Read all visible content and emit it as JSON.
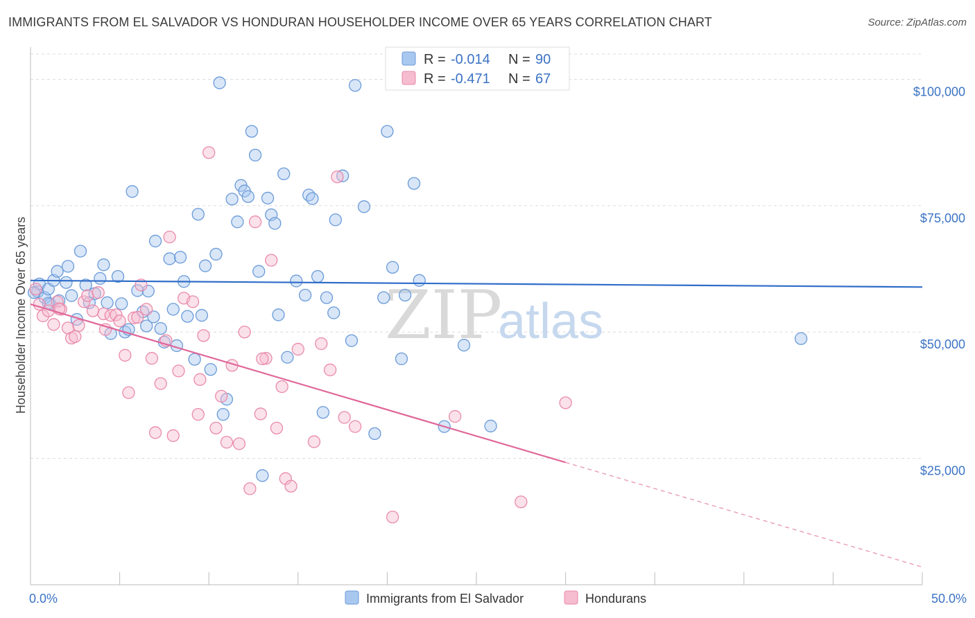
{
  "header": {
    "title": "IMMIGRANTS FROM EL SALVADOR VS HONDURAN HOUSEHOLDER INCOME OVER 65 YEARS CORRELATION CHART",
    "source": "Source: ZipAtlas.com"
  },
  "watermark": {
    "zip": "ZIP",
    "atlas": "atlas"
  },
  "legend_top": [
    {
      "r_label": "R =",
      "r_value": "-0.014",
      "n_label": "N =",
      "n_value": "90",
      "color": "#a9c8f0"
    },
    {
      "r_label": "R =",
      "r_value": "-0.471",
      "n_label": "N =",
      "n_value": "67",
      "color": "#f6bcd0"
    }
  ],
  "chart_data": {
    "type": "scatter",
    "title": "IMMIGRANTS FROM EL SALVADOR VS HONDURAN HOUSEHOLDER INCOME OVER 65 YEARS CORRELATION CHART",
    "xlabel": "",
    "ylabel": "Householder Income Over 65 years",
    "xlim": [
      0,
      50
    ],
    "ylim": [
      0,
      105000
    ],
    "x_tick_labels": [
      "0.0%",
      "50.0%"
    ],
    "y_ticks": [
      25000,
      50000,
      75000,
      100000
    ],
    "y_tick_labels": [
      "$25,000",
      "$50,000",
      "$75,000",
      "$100,000"
    ],
    "grid": true,
    "legend_position": "bottom",
    "series": [
      {
        "name": "Immigrants from El Salvador",
        "color": "#6a9ad8",
        "fill": "#a9c8f0",
        "trend": {
          "x": [
            0,
            50
          ],
          "y": [
            60200,
            58900
          ],
          "style": "solid"
        },
        "points": [
          [
            0.4,
            58000
          ],
          [
            0.5,
            59500
          ],
          [
            0.8,
            56800
          ],
          [
            1.0,
            58500
          ],
          [
            1.1,
            55500
          ],
          [
            1.3,
            60200
          ],
          [
            1.5,
            62000
          ],
          [
            1.6,
            56200
          ],
          [
            2.0,
            59800
          ],
          [
            2.1,
            63000
          ],
          [
            2.3,
            57200
          ],
          [
            2.8,
            66000
          ],
          [
            3.1,
            59300
          ],
          [
            3.3,
            55800
          ],
          [
            3.6,
            57600
          ],
          [
            3.9,
            60600
          ],
          [
            4.1,
            63300
          ],
          [
            4.3,
            55800
          ],
          [
            4.5,
            49700
          ],
          [
            4.9,
            61000
          ],
          [
            5.1,
            55600
          ],
          [
            5.3,
            50000
          ],
          [
            5.5,
            50500
          ],
          [
            5.7,
            77800
          ],
          [
            6.0,
            58200
          ],
          [
            6.3,
            54000
          ],
          [
            6.5,
            51200
          ],
          [
            6.6,
            58100
          ],
          [
            6.9,
            53000
          ],
          [
            7.0,
            68000
          ],
          [
            7.3,
            50700
          ],
          [
            7.5,
            48000
          ],
          [
            7.8,
            64500
          ],
          [
            8.0,
            54500
          ],
          [
            8.2,
            47300
          ],
          [
            8.4,
            64800
          ],
          [
            8.6,
            60000
          ],
          [
            8.8,
            53100
          ],
          [
            9.2,
            44600
          ],
          [
            9.4,
            73300
          ],
          [
            9.6,
            53300
          ],
          [
            9.8,
            63100
          ],
          [
            10.1,
            42600
          ],
          [
            10.4,
            65400
          ],
          [
            10.6,
            99300
          ],
          [
            10.8,
            33700
          ],
          [
            11.0,
            36700
          ],
          [
            11.3,
            76300
          ],
          [
            11.6,
            71800
          ],
          [
            11.8,
            79000
          ],
          [
            12.0,
            77900
          ],
          [
            12.2,
            76800
          ],
          [
            12.4,
            89700
          ],
          [
            12.6,
            85000
          ],
          [
            12.8,
            62000
          ],
          [
            13.0,
            21600
          ],
          [
            13.3,
            76500
          ],
          [
            13.5,
            73200
          ],
          [
            13.7,
            71500
          ],
          [
            13.9,
            53400
          ],
          [
            14.2,
            81300
          ],
          [
            14.4,
            45000
          ],
          [
            14.9,
            60100
          ],
          [
            15.4,
            57300
          ],
          [
            15.6,
            77100
          ],
          [
            15.8,
            76400
          ],
          [
            16.1,
            61000
          ],
          [
            16.4,
            34100
          ],
          [
            16.6,
            56800
          ],
          [
            17.0,
            53800
          ],
          [
            17.1,
            72200
          ],
          [
            17.5,
            80900
          ],
          [
            18.0,
            48300
          ],
          [
            18.2,
            98800
          ],
          [
            18.7,
            74800
          ],
          [
            19.3,
            29900
          ],
          [
            19.8,
            56800
          ],
          [
            20.0,
            89700
          ],
          [
            20.3,
            62800
          ],
          [
            20.8,
            44700
          ],
          [
            21.0,
            57300
          ],
          [
            21.5,
            79400
          ],
          [
            21.8,
            60200
          ],
          [
            23.2,
            31300
          ],
          [
            24.3,
            47400
          ],
          [
            25.8,
            31400
          ],
          [
            43.2,
            48700
          ],
          [
            0.2,
            57800
          ],
          [
            1.0,
            55700
          ],
          [
            2.6,
            52500
          ]
        ]
      },
      {
        "name": "Hondurans",
        "color": "#e98aab",
        "fill": "#f6bcd0",
        "trend": {
          "x": [
            0,
            30
          ],
          "y": [
            55500,
            24200
          ],
          "style": "solid",
          "extension_x": [
            30,
            50
          ],
          "extension_y": [
            24200,
            3500
          ]
        },
        "points": [
          [
            0.3,
            58500
          ],
          [
            0.5,
            55500
          ],
          [
            0.7,
            53200
          ],
          [
            1.0,
            54200
          ],
          [
            1.3,
            51500
          ],
          [
            1.5,
            56000
          ],
          [
            1.7,
            54500
          ],
          [
            2.1,
            50800
          ],
          [
            2.3,
            48800
          ],
          [
            2.5,
            49100
          ],
          [
            3.0,
            56000
          ],
          [
            3.2,
            57200
          ],
          [
            3.5,
            54200
          ],
          [
            3.8,
            57800
          ],
          [
            4.1,
            53600
          ],
          [
            4.2,
            50500
          ],
          [
            4.5,
            53300
          ],
          [
            4.8,
            53400
          ],
          [
            5.0,
            52200
          ],
          [
            5.3,
            45400
          ],
          [
            5.5,
            38000
          ],
          [
            5.8,
            52800
          ],
          [
            6.2,
            59300
          ],
          [
            6.5,
            54500
          ],
          [
            6.8,
            44800
          ],
          [
            7.0,
            30100
          ],
          [
            7.3,
            39800
          ],
          [
            7.6,
            48300
          ],
          [
            7.8,
            68800
          ],
          [
            8.0,
            29500
          ],
          [
            8.3,
            42300
          ],
          [
            8.6,
            56700
          ],
          [
            9.1,
            56000
          ],
          [
            9.4,
            33700
          ],
          [
            9.7,
            49300
          ],
          [
            10.0,
            85500
          ],
          [
            10.4,
            31000
          ],
          [
            10.7,
            37300
          ],
          [
            11.0,
            28200
          ],
          [
            11.3,
            43400
          ],
          [
            11.7,
            27900
          ],
          [
            12.0,
            50000
          ],
          [
            12.3,
            19000
          ],
          [
            12.6,
            71800
          ],
          [
            12.9,
            33800
          ],
          [
            13.2,
            44800
          ],
          [
            13.5,
            64200
          ],
          [
            13.8,
            31000
          ],
          [
            14.1,
            39200
          ],
          [
            14.3,
            21000
          ],
          [
            14.6,
            19500
          ],
          [
            15.0,
            46600
          ],
          [
            15.9,
            28300
          ],
          [
            16.3,
            47700
          ],
          [
            16.8,
            42500
          ],
          [
            17.2,
            80700
          ],
          [
            17.6,
            33100
          ],
          [
            18.2,
            31300
          ],
          [
            20.3,
            13400
          ],
          [
            23.8,
            33300
          ],
          [
            27.5,
            16400
          ],
          [
            30.0,
            36000
          ],
          [
            1.6,
            54600
          ],
          [
            2.7,
            51300
          ],
          [
            6.0,
            52900
          ],
          [
            9.5,
            40600
          ],
          [
            13.0,
            44700
          ]
        ]
      }
    ]
  }
}
